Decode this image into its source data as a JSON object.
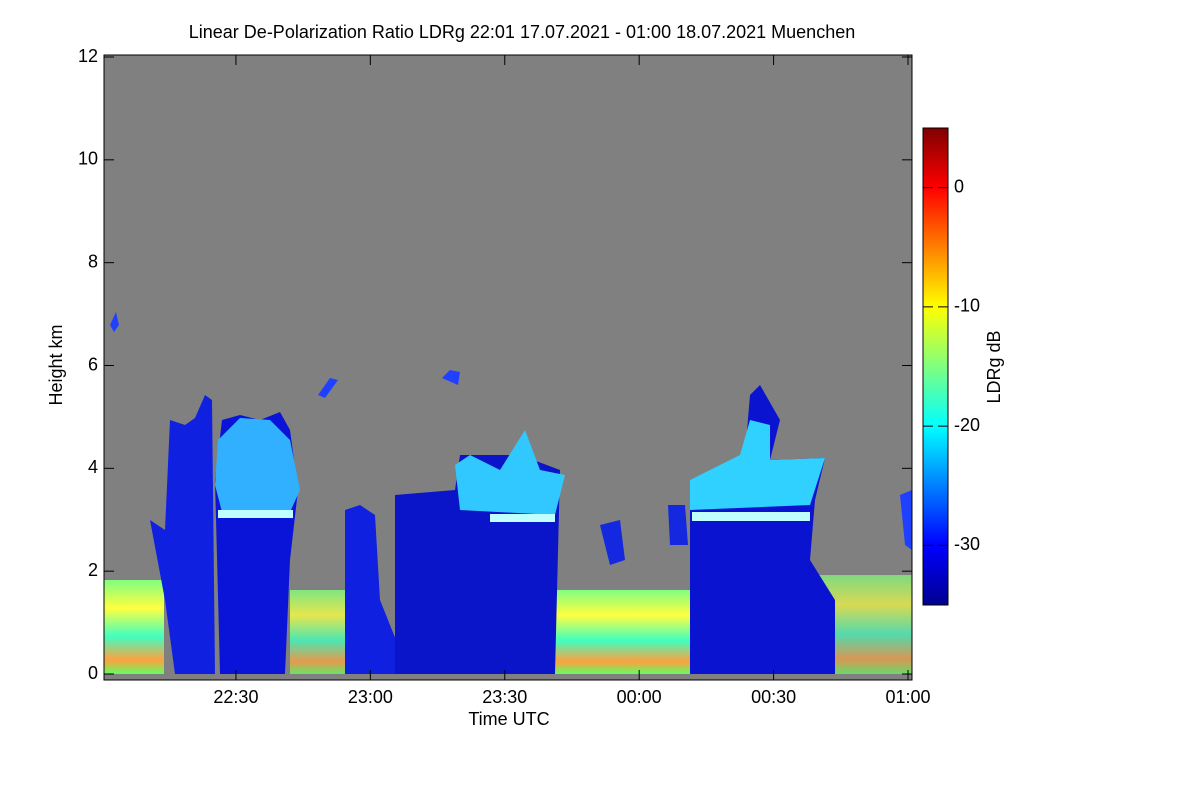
{
  "chart_data": {
    "type": "heatmap",
    "title": "Linear De-Polarization Ratio LDRg   22:01 17.07.2021 - 01:00 18.07.2021 Muenchen",
    "x_label": "Time UTC",
    "y_label": "Height km",
    "colorbar_label": "LDRg dB",
    "xlim": [
      1,
      180
    ],
    "xticks": [
      {
        "value": 30,
        "label": "22:30"
      },
      {
        "value": 60,
        "label": "23:00"
      },
      {
        "value": 90,
        "label": "23:30"
      },
      {
        "value": 120,
        "label": "00:00"
      },
      {
        "value": 150,
        "label": "00:30"
      },
      {
        "value": 180,
        "label": "01:00"
      }
    ],
    "ylim": [
      0,
      12
    ],
    "yticks": [
      0,
      2,
      4,
      6,
      8,
      10,
      12
    ],
    "clim": [
      -35,
      5
    ],
    "cticks": [
      -30,
      -20,
      -10,
      0
    ],
    "colormap": "jet"
  }
}
